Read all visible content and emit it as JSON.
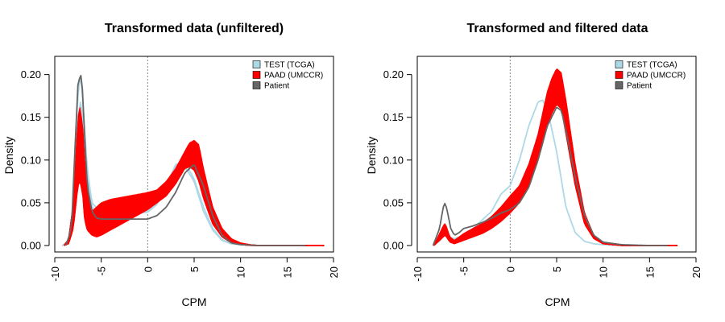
{
  "chart_data": [
    {
      "type": "line",
      "title": "Transformed data (unfiltered)",
      "xlabel": "CPM",
      "ylabel": "Density",
      "xlim": [
        -10,
        20
      ],
      "ylim": [
        0,
        0.21
      ],
      "xticks": [
        -10,
        -5,
        0,
        5,
        10,
        15,
        20
      ],
      "xtick_labels": [
        "-10",
        "-5",
        "0",
        "5",
        "10",
        "15",
        "20"
      ],
      "yticks": [
        0,
        0.05,
        0.1,
        0.15,
        0.2
      ],
      "ytick_labels": [
        "0.00",
        "0.05",
        "0.10",
        "0.15",
        "0.20"
      ],
      "vline_x": 0,
      "grid": false,
      "legend_position": "top-right",
      "legend": [
        {
          "label": "TEST (TCGA)",
          "color": "#add8e6"
        },
        {
          "label": "PAAD (UMCCR)",
          "color": "#ff0000"
        },
        {
          "label": "Patient",
          "color": "#666666"
        }
      ],
      "series": [
        {
          "group": "TEST (TCGA)",
          "color": "#add8e6",
          "x": [
            -9.2,
            -8.5,
            -8,
            -7.5,
            -7.2,
            -7,
            -6.5,
            -6,
            -5,
            -4,
            -2,
            0,
            1,
            2,
            3,
            4,
            5,
            6,
            7,
            8,
            9,
            10,
            12,
            15,
            17
          ],
          "y": [
            0,
            0.005,
            0.05,
            0.18,
            0.2,
            0.17,
            0.09,
            0.05,
            0.038,
            0.036,
            0.038,
            0.04,
            0.05,
            0.07,
            0.094,
            0.092,
            0.075,
            0.04,
            0.018,
            0.006,
            0.002,
            0.001,
            0,
            0,
            0
          ]
        },
        {
          "group": "TEST (TCGA)",
          "color": "#add8e6",
          "x": [
            -9.2,
            -8.5,
            -8,
            -7.5,
            -7.2,
            -7,
            -6.5,
            -6,
            -5,
            -4,
            -2,
            0,
            1,
            2,
            3,
            4,
            5,
            6,
            7,
            8,
            9,
            10,
            12,
            15,
            17
          ],
          "y": [
            0,
            0.004,
            0.04,
            0.15,
            0.17,
            0.15,
            0.08,
            0.045,
            0.036,
            0.035,
            0.037,
            0.039,
            0.048,
            0.068,
            0.095,
            0.097,
            0.078,
            0.045,
            0.02,
            0.007,
            0.002,
            0.001,
            0,
            0,
            0
          ]
        },
        {
          "group": "Patient",
          "color": "#666666",
          "x": [
            -8.8,
            -8.2,
            -7.8,
            -7.5,
            -7.2,
            -7,
            -6.8,
            -6.5,
            -6,
            -5.5,
            -5,
            -4,
            -2,
            0,
            1,
            2,
            3,
            4,
            5,
            6,
            7,
            8,
            9,
            10,
            12,
            15,
            17
          ],
          "y": [
            0,
            0.02,
            0.12,
            0.19,
            0.2,
            0.18,
            0.13,
            0.07,
            0.04,
            0.032,
            0.031,
            0.031,
            0.031,
            0.031,
            0.035,
            0.045,
            0.062,
            0.085,
            0.095,
            0.07,
            0.035,
            0.012,
            0.003,
            0.001,
            0,
            0,
            0
          ]
        }
      ],
      "band": {
        "group": "PAAD (UMCCR)",
        "color": "#ff0000",
        "count": 50,
        "x": [
          -9,
          -8.5,
          -8,
          -7.5,
          -7.3,
          -7,
          -6.8,
          -6.5,
          -6,
          -5.5,
          -5,
          -4,
          -3,
          -2,
          -1,
          0,
          1,
          2,
          3,
          4,
          4.5,
          5,
          5.5,
          6,
          7,
          8,
          9,
          10,
          11,
          12,
          14,
          16,
          18,
          19
        ],
        "y_low": [
          0,
          0.002,
          0.02,
          0.07,
          0.075,
          0.06,
          0.03,
          0.018,
          0.012,
          0.01,
          0.012,
          0.018,
          0.024,
          0.03,
          0.036,
          0.042,
          0.05,
          0.058,
          0.072,
          0.09,
          0.092,
          0.088,
          0.075,
          0.055,
          0.025,
          0.01,
          0.003,
          0.001,
          0,
          0,
          0,
          0,
          0,
          0
        ],
        "y_high": [
          0,
          0.008,
          0.05,
          0.15,
          0.162,
          0.14,
          0.1,
          0.065,
          0.04,
          0.045,
          0.05,
          0.054,
          0.056,
          0.058,
          0.06,
          0.062,
          0.065,
          0.075,
          0.09,
          0.11,
          0.12,
          0.123,
          0.118,
          0.09,
          0.045,
          0.02,
          0.008,
          0.003,
          0.001,
          0,
          0,
          0,
          0,
          0
        ]
      }
    },
    {
      "type": "line",
      "title": "Transformed and filtered data",
      "xlabel": "CPM",
      "ylabel": "Density",
      "xlim": [
        -10,
        20
      ],
      "ylim": [
        0,
        0.21
      ],
      "xticks": [
        -10,
        -5,
        0,
        5,
        10,
        15,
        20
      ],
      "xtick_labels": [
        "-10",
        "-5",
        "0",
        "5",
        "10",
        "15",
        "20"
      ],
      "yticks": [
        0,
        0.05,
        0.1,
        0.15,
        0.2
      ],
      "ytick_labels": [
        "0.00",
        "0.05",
        "0.10",
        "0.15",
        "0.20"
      ],
      "vline_x": 0,
      "grid": false,
      "legend_position": "top-right",
      "legend": [
        {
          "label": "TEST (TCGA)",
          "color": "#add8e6"
        },
        {
          "label": "PAAD (UMCCR)",
          "color": "#ff0000"
        },
        {
          "label": "Patient",
          "color": "#666666"
        }
      ],
      "series": [
        {
          "group": "TEST (TCGA)",
          "color": "#add8e6",
          "x": [
            -8.3,
            -7.5,
            -7,
            -6.5,
            -6,
            -5,
            -4,
            -3,
            -2,
            -1,
            0,
            1,
            2,
            3,
            3.5,
            4,
            5,
            6,
            7,
            8,
            9,
            10,
            12,
            15
          ],
          "y": [
            0,
            0.006,
            0.018,
            0.01,
            0.008,
            0.012,
            0.02,
            0.03,
            0.04,
            0.06,
            0.07,
            0.1,
            0.14,
            0.168,
            0.17,
            0.16,
            0.11,
            0.045,
            0.015,
            0.005,
            0.002,
            0.001,
            0,
            0
          ]
        },
        {
          "group": "Patient",
          "color": "#666666",
          "x": [
            -8.3,
            -7.6,
            -7.2,
            -7,
            -6.8,
            -6.4,
            -6,
            -5.5,
            -5,
            -4,
            -3,
            -2,
            -1,
            0,
            1,
            2,
            3,
            4,
            5,
            5.5,
            6,
            7,
            8,
            9,
            10,
            12,
            15,
            17
          ],
          "y": [
            0,
            0.02,
            0.045,
            0.05,
            0.042,
            0.02,
            0.012,
            0.015,
            0.02,
            0.023,
            0.027,
            0.032,
            0.038,
            0.042,
            0.05,
            0.068,
            0.1,
            0.14,
            0.162,
            0.158,
            0.135,
            0.08,
            0.035,
            0.012,
            0.004,
            0.001,
            0,
            0
          ]
        }
      ],
      "band": {
        "group": "PAAD (UMCCR)",
        "color": "#ff0000",
        "count": 50,
        "x": [
          -8.2,
          -7.6,
          -7.2,
          -7,
          -6.8,
          -6.5,
          -6,
          -5.5,
          -5,
          -4,
          -3,
          -2,
          -1,
          0,
          1,
          2,
          3,
          4,
          4.5,
          5,
          5.5,
          6,
          7,
          8,
          9,
          10,
          11,
          12,
          14,
          16,
          18
        ],
        "y_low": [
          0,
          0.006,
          0.01,
          0.012,
          0.009,
          0.004,
          0.002,
          0.004,
          0.006,
          0.01,
          0.014,
          0.02,
          0.028,
          0.038,
          0.05,
          0.07,
          0.1,
          0.14,
          0.155,
          0.165,
          0.16,
          0.13,
          0.07,
          0.025,
          0.008,
          0.002,
          0.001,
          0,
          0,
          0,
          0
        ],
        "y_high": [
          0,
          0.014,
          0.023,
          0.026,
          0.02,
          0.01,
          0.006,
          0.01,
          0.014,
          0.02,
          0.026,
          0.034,
          0.045,
          0.058,
          0.07,
          0.095,
          0.13,
          0.18,
          0.196,
          0.207,
          0.202,
          0.17,
          0.095,
          0.038,
          0.012,
          0.004,
          0.001,
          0,
          0,
          0,
          0
        ]
      }
    }
  ]
}
